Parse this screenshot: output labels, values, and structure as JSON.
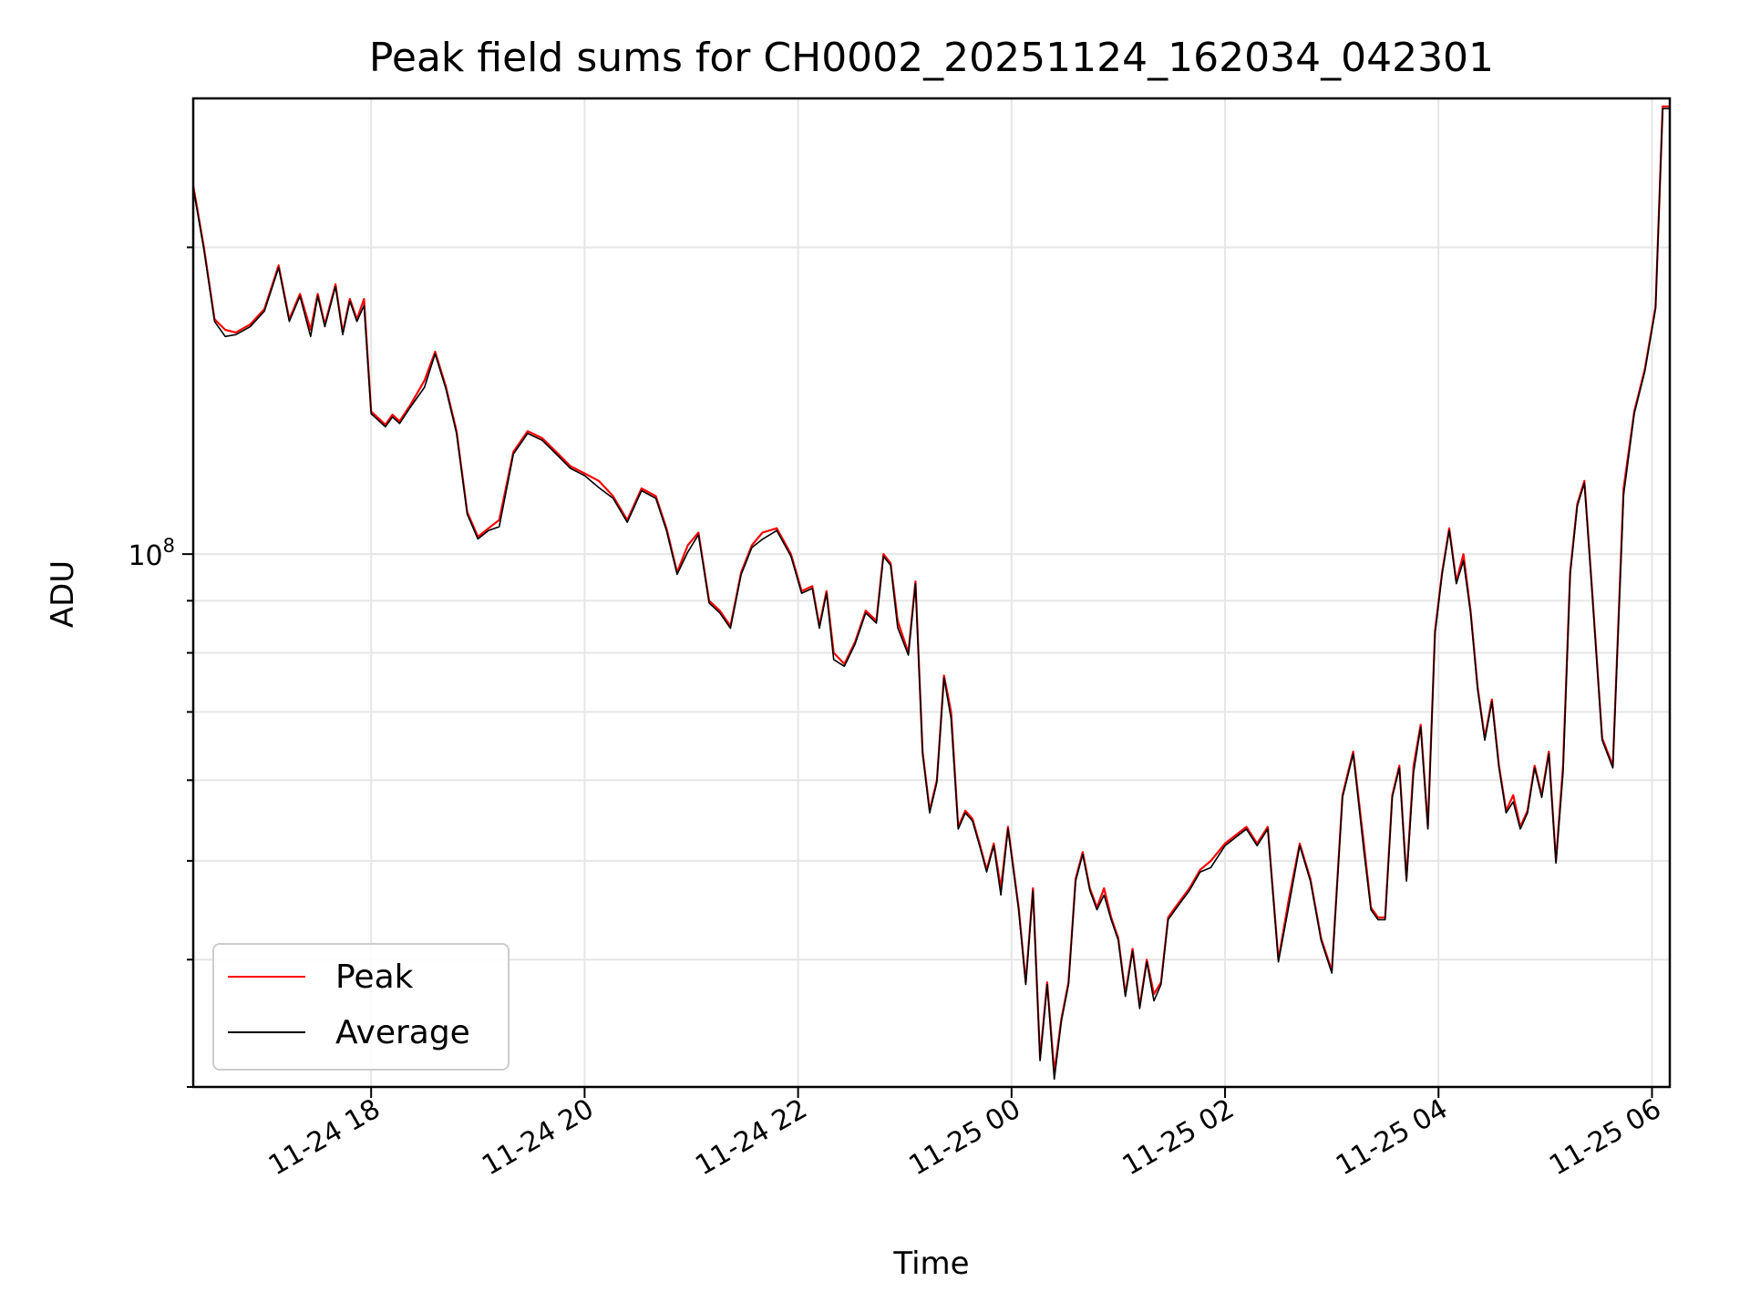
{
  "chart_data": {
    "type": "line",
    "title": "Peak field sums for CH0002_20251124_162034_042301",
    "xlabel": "Time",
    "ylabel": "ADU",
    "y_scale": "log",
    "y_tick_labels": [
      {
        "value": 100000000,
        "base": "10",
        "exponent": "8"
      }
    ],
    "x_tick_labels": [
      "11-24 18",
      "11-24 20",
      "11-24 22",
      "11-25 00",
      "11-25 02",
      "11-25 04",
      "11-25 06"
    ],
    "x_ticks": [
      "2025-11-24T18:00",
      "2025-11-24T20:00",
      "2025-11-24T22:00",
      "2025-11-25T00:00",
      "2025-11-25T02:00",
      "2025-11-25T04:00",
      "2025-11-25T06:00"
    ],
    "xlim": [
      "2025-11-24T16:20",
      "2025-11-25T06:10"
    ],
    "ylim": [
      30000000,
      280000000
    ],
    "grid": true,
    "legend_position": "lower-left",
    "series": [
      {
        "name": "Peak",
        "color": "#ff0000",
        "x": [
          "2025-11-24T16:20",
          "2025-11-24T16:26",
          "2025-11-24T16:32",
          "2025-11-24T16:38",
          "2025-11-24T16:44",
          "2025-11-24T16:52",
          "2025-11-24T17:00",
          "2025-11-24T17:08",
          "2025-11-24T17:14",
          "2025-11-24T17:20",
          "2025-11-24T17:26",
          "2025-11-24T17:30",
          "2025-11-24T17:34",
          "2025-11-24T17:40",
          "2025-11-24T17:44",
          "2025-11-24T17:48",
          "2025-11-24T17:52",
          "2025-11-24T17:56",
          "2025-11-24T18:00",
          "2025-11-24T18:04",
          "2025-11-24T18:08",
          "2025-11-24T18:12",
          "2025-11-24T18:16",
          "2025-11-24T18:22",
          "2025-11-24T18:30",
          "2025-11-24T18:36",
          "2025-11-24T18:42",
          "2025-11-24T18:48",
          "2025-11-24T18:54",
          "2025-11-24T19:00",
          "2025-11-24T19:06",
          "2025-11-24T19:12",
          "2025-11-24T19:20",
          "2025-11-24T19:28",
          "2025-11-24T19:36",
          "2025-11-24T19:44",
          "2025-11-24T19:52",
          "2025-11-24T20:00",
          "2025-11-24T20:08",
          "2025-11-24T20:16",
          "2025-11-24T20:24",
          "2025-11-24T20:32",
          "2025-11-24T20:40",
          "2025-11-24T20:46",
          "2025-11-24T20:52",
          "2025-11-24T20:58",
          "2025-11-24T21:04",
          "2025-11-24T21:10",
          "2025-11-24T21:16",
          "2025-11-24T21:22",
          "2025-11-24T21:28",
          "2025-11-24T21:34",
          "2025-11-24T21:40",
          "2025-11-24T21:48",
          "2025-11-24T21:56",
          "2025-11-24T22:02",
          "2025-11-24T22:08",
          "2025-11-24T22:12",
          "2025-11-24T22:16",
          "2025-11-24T22:20",
          "2025-11-24T22:26",
          "2025-11-24T22:32",
          "2025-11-24T22:38",
          "2025-11-24T22:44",
          "2025-11-24T22:48",
          "2025-11-24T22:52",
          "2025-11-24T22:56",
          "2025-11-24T23:02",
          "2025-11-24T23:06",
          "2025-11-24T23:10",
          "2025-11-24T23:14",
          "2025-11-24T23:18",
          "2025-11-24T23:22",
          "2025-11-24T23:26",
          "2025-11-24T23:30",
          "2025-11-24T23:34",
          "2025-11-24T23:38",
          "2025-11-24T23:42",
          "2025-11-24T23:46",
          "2025-11-24T23:50",
          "2025-11-24T23:54",
          "2025-11-24T23:58",
          "2025-11-25T00:04",
          "2025-11-25T00:08",
          "2025-11-25T00:12",
          "2025-11-25T00:16",
          "2025-11-25T00:20",
          "2025-11-25T00:24",
          "2025-11-25T00:28",
          "2025-11-25T00:32",
          "2025-11-25T00:36",
          "2025-11-25T00:40",
          "2025-11-25T00:44",
          "2025-11-25T00:48",
          "2025-11-25T00:52",
          "2025-11-25T00:56",
          "2025-11-25T01:00",
          "2025-11-25T01:04",
          "2025-11-25T01:08",
          "2025-11-25T01:12",
          "2025-11-25T01:16",
          "2025-11-25T01:20",
          "2025-11-25T01:24",
          "2025-11-25T01:28",
          "2025-11-25T01:32",
          "2025-11-25T01:36",
          "2025-11-25T01:40",
          "2025-11-25T01:46",
          "2025-11-25T01:52",
          "2025-11-25T02:00",
          "2025-11-25T02:06",
          "2025-11-25T02:12",
          "2025-11-25T02:18",
          "2025-11-25T02:24",
          "2025-11-25T02:30",
          "2025-11-25T02:36",
          "2025-11-25T02:42",
          "2025-11-25T02:48",
          "2025-11-25T02:54",
          "2025-11-25T03:00",
          "2025-11-25T03:06",
          "2025-11-25T03:12",
          "2025-11-25T03:18",
          "2025-11-25T03:22",
          "2025-11-25T03:26",
          "2025-11-25T03:30",
          "2025-11-25T03:34",
          "2025-11-25T03:38",
          "2025-11-25T03:42",
          "2025-11-25T03:46",
          "2025-11-25T03:50",
          "2025-11-25T03:54",
          "2025-11-25T03:58",
          "2025-11-25T04:02",
          "2025-11-25T04:06",
          "2025-11-25T04:10",
          "2025-11-25T04:14",
          "2025-11-25T04:18",
          "2025-11-25T04:22",
          "2025-11-25T04:26",
          "2025-11-25T04:30",
          "2025-11-25T04:34",
          "2025-11-25T04:38",
          "2025-11-25T04:42",
          "2025-11-25T04:46",
          "2025-11-25T04:50",
          "2025-11-25T04:54",
          "2025-11-25T04:58",
          "2025-11-25T05:02",
          "2025-11-25T05:06",
          "2025-11-25T05:10",
          "2025-11-25T05:14",
          "2025-11-25T05:18",
          "2025-11-25T05:22",
          "2025-11-25T05:26",
          "2025-11-25T05:32",
          "2025-11-25T05:38",
          "2025-11-25T05:44",
          "2025-11-25T05:50",
          "2025-11-25T05:56",
          "2025-11-25T06:02",
          "2025-11-25T06:06",
          "2025-11-25T06:10"
        ],
        "values": [
          230000000,
          200000000,
          170000000,
          166000000,
          165000000,
          168000000,
          174000000,
          192000000,
          170000000,
          180000000,
          166000000,
          180000000,
          168000000,
          184000000,
          165000000,
          178000000,
          170000000,
          178000000,
          138000000,
          136000000,
          134000000,
          137000000,
          135000000,
          140000000,
          148000000,
          158000000,
          146000000,
          132000000,
          110000000,
          104000000,
          106000000,
          108000000,
          126000000,
          132000000,
          130000000,
          126000000,
          122000000,
          120000000,
          118000000,
          114000000,
          108000000,
          116000000,
          114000000,
          106000000,
          96000000,
          102000000,
          105000000,
          90000000,
          88000000,
          85000000,
          96000000,
          102000000,
          105000000,
          106000000,
          100000000,
          92000000,
          93000000,
          85000000,
          92000000,
          80000000,
          78000000,
          82000000,
          88000000,
          86000000,
          100000000,
          98000000,
          86000000,
          80000000,
          94000000,
          64000000,
          56000000,
          60000000,
          76000000,
          70000000,
          54000000,
          56000000,
          55000000,
          52000000,
          49000000,
          52000000,
          47000000,
          54000000,
          45000000,
          38000000,
          47000000,
          32000000,
          38000000,
          31000000,
          35000000,
          38000000,
          48000000,
          51000000,
          47000000,
          45000000,
          47000000,
          44000000,
          42000000,
          37000000,
          41000000,
          36000000,
          40000000,
          37000000,
          38000000,
          44000000,
          45000000,
          46000000,
          47000000,
          49000000,
          50000000,
          52000000,
          53000000,
          54000000,
          52000000,
          54000000,
          40000000,
          46000000,
          52000000,
          48000000,
          42000000,
          39000000,
          58000000,
          64000000,
          52000000,
          45000000,
          44000000,
          44000000,
          58000000,
          62000000,
          48000000,
          62000000,
          68000000,
          54000000,
          84000000,
          96000000,
          106000000,
          94000000,
          100000000,
          88000000,
          74000000,
          66000000,
          72000000,
          62000000,
          56000000,
          58000000,
          54000000,
          56000000,
          62000000,
          58000000,
          64000000,
          50000000,
          62000000,
          96000000,
          112000000,
          118000000,
          94000000,
          66000000,
          62000000,
          116000000,
          138000000,
          152000000,
          175000000,
          275000000,
          275000000
        ],
        "note_lines": []
      },
      {
        "name": "Average",
        "color": "#000000",
        "x": [],
        "values": []
      }
    ]
  }
}
